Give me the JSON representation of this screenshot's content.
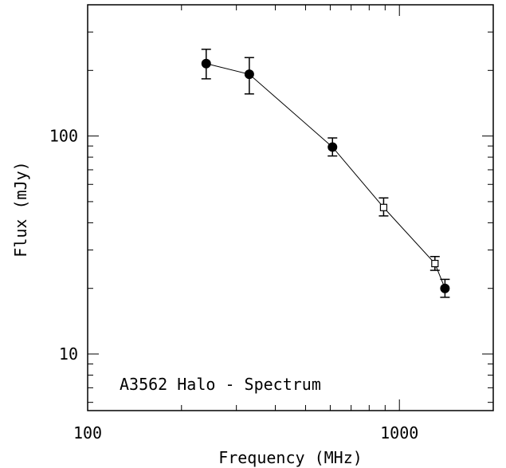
{
  "chart_data": {
    "type": "scatter",
    "title": "",
    "xlabel": "Frequency (MHz)",
    "ylabel": "Flux (mJy)",
    "x_scale": "log",
    "y_scale": "log",
    "xlim": [
      100,
      2000
    ],
    "ylim": [
      5.5,
      400
    ],
    "x_tick_labels": [
      {
        "value": 100,
        "label": "100"
      },
      {
        "value": 1000,
        "label": "1000"
      }
    ],
    "y_tick_labels": [
      {
        "value": 10,
        "label": "10"
      },
      {
        "value": 100,
        "label": "100"
      }
    ],
    "grid": false,
    "annotation": "A3562 Halo - Spectrum",
    "connecting_line": true,
    "series": [
      {
        "marker": "filled-circle",
        "points": [
          {
            "x": 240,
            "y": 215,
            "ylow": 183,
            "yhigh": 250
          },
          {
            "x": 330,
            "y": 192,
            "ylow": 156,
            "yhigh": 229
          },
          {
            "x": 610,
            "y": 89,
            "ylow": 81,
            "yhigh": 98
          },
          {
            "x": 1400,
            "y": 20,
            "ylow": 18.2,
            "yhigh": 22
          }
        ]
      },
      {
        "marker": "open-square",
        "points": [
          {
            "x": 890,
            "y": 47,
            "ylow": 43,
            "yhigh": 52
          },
          {
            "x": 1300,
            "y": 26,
            "ylow": 24.2,
            "yhigh": 28
          }
        ]
      }
    ]
  }
}
